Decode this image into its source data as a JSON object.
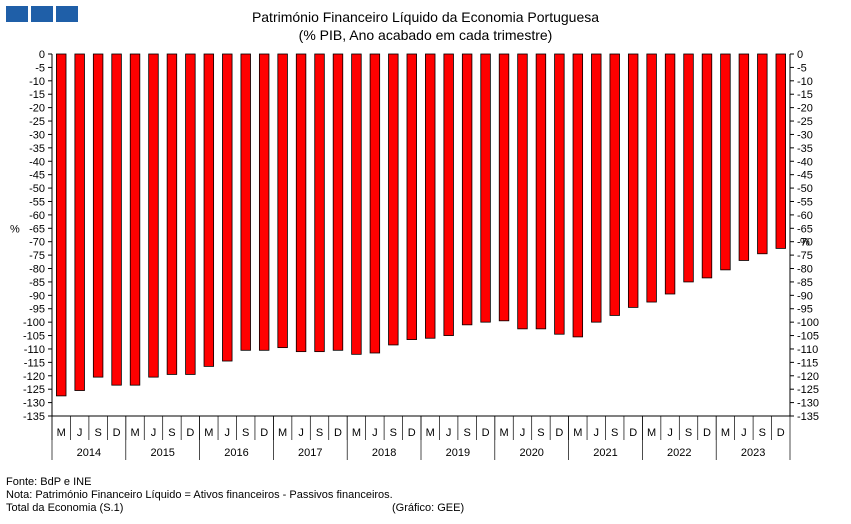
{
  "title": "Património Financeiro Líquido da Economia Portuguesa",
  "subtitle": "(% PIB, Ano acabado em cada trimestre)",
  "notes": {
    "source": "Fonte: BdP e INE",
    "note": "Nota: Património Financeiro Líquido = Ativos financeiros - Passivos financeiros.",
    "total": "Total da Economia (S.1)",
    "credit": "(Gráfico: GEE)"
  },
  "chart_data": {
    "type": "bar",
    "ylabel": "%",
    "ylabel_right": "%",
    "ylim": [
      -135,
      0
    ],
    "ytick_step": 5,
    "grid": false,
    "bar_color": "#ff0000",
    "quarter_labels": [
      "M",
      "J",
      "S",
      "D"
    ],
    "years": [
      "2014",
      "2015",
      "2016",
      "2017",
      "2018",
      "2019",
      "2020",
      "2021",
      "2022",
      "2023"
    ],
    "values": [
      -127.5,
      -125.5,
      -120.5,
      -123.5,
      -123.5,
      -120.5,
      -119.5,
      -119.5,
      -116.5,
      -114.5,
      -110.5,
      -110.5,
      -109.5,
      -111.0,
      -111.0,
      -110.5,
      -112.0,
      -111.5,
      -108.5,
      -106.5,
      -106.0,
      -105.0,
      -101.0,
      -100.0,
      -99.5,
      -102.5,
      -102.5,
      -104.5,
      -105.5,
      -100.0,
      -97.5,
      -94.5,
      -92.5,
      -89.5,
      -85.0,
      -83.5,
      -80.5,
      -77.0,
      -74.5,
      -72.5
    ]
  }
}
